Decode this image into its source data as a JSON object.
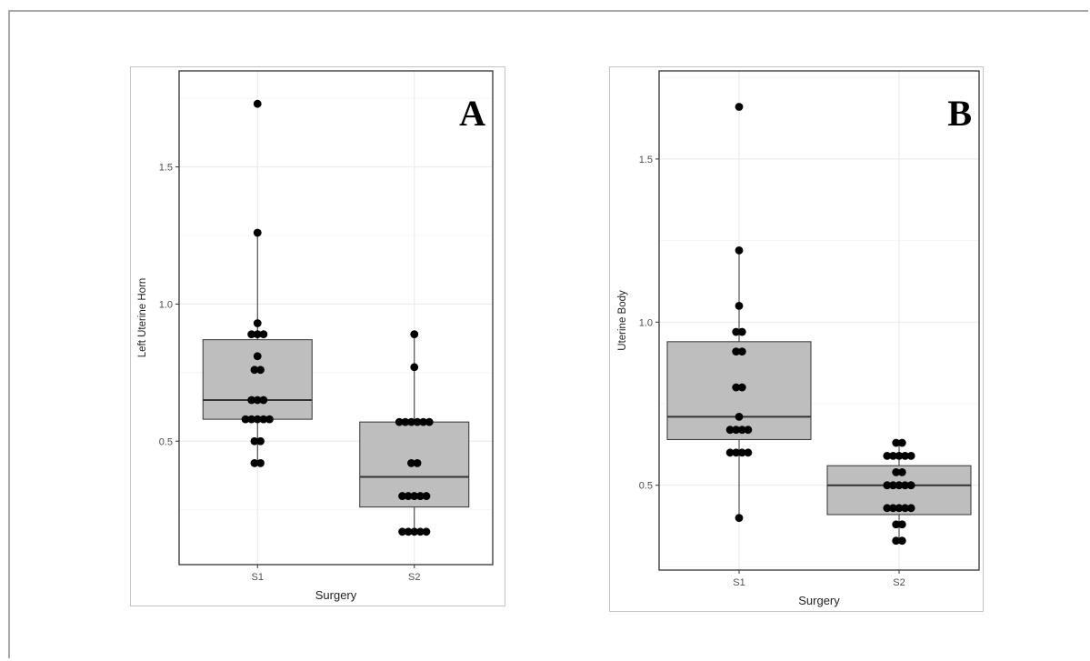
{
  "chart_data": [
    {
      "type": "box",
      "panel_label": "A",
      "title": "",
      "xlabel": "Surgery",
      "ylabel": "Left Uterine Horn",
      "categories": [
        "S1",
        "S2"
      ],
      "ylim": [
        0.05,
        1.85
      ],
      "yticks": [
        0.5,
        1.0,
        1.5
      ],
      "ytick_labels": [
        "0.5",
        "1.0",
        "1.5"
      ],
      "grid": true,
      "box_color": "#bebebe",
      "point_color": "#000000",
      "boxes": [
        {
          "category": "S1",
          "q1": 0.58,
          "median": 0.65,
          "q3": 0.87,
          "whisker_low": 0.42,
          "whisker_high": 1.26
        },
        {
          "category": "S2",
          "q1": 0.26,
          "median": 0.37,
          "q3": 0.57,
          "whisker_low": 0.17,
          "whisker_high": 0.89
        }
      ],
      "points": [
        {
          "category": "S1",
          "values": [
            1.73,
            1.26,
            0.93,
            0.89,
            0.89,
            0.89,
            0.81,
            0.76,
            0.76,
            0.65,
            0.65,
            0.65,
            0.58,
            0.58,
            0.58,
            0.58,
            0.58,
            0.5,
            0.5,
            0.42,
            0.42
          ]
        },
        {
          "category": "S2",
          "values": [
            0.89,
            0.77,
            0.57,
            0.57,
            0.57,
            0.57,
            0.57,
            0.57,
            0.42,
            0.42,
            0.3,
            0.3,
            0.3,
            0.3,
            0.3,
            0.17,
            0.17,
            0.17,
            0.17,
            0.17
          ]
        }
      ]
    },
    {
      "type": "box",
      "panel_label": "B",
      "title": "",
      "xlabel": "Surgery",
      "ylabel": "Uterine Body",
      "categories": [
        "S1",
        "S2"
      ],
      "ylim": [
        0.24,
        1.77
      ],
      "yticks": [
        0.5,
        1.0,
        1.5
      ],
      "ytick_labels": [
        "0.5",
        "1.0",
        "1.5"
      ],
      "grid": true,
      "box_color": "#bebebe",
      "point_color": "#000000",
      "boxes": [
        {
          "category": "S1",
          "q1": 0.64,
          "median": 0.71,
          "q3": 0.94,
          "whisker_low": 0.4,
          "whisker_high": 1.22
        },
        {
          "category": "S2",
          "q1": 0.41,
          "median": 0.5,
          "q3": 0.56,
          "whisker_low": 0.33,
          "whisker_high": 0.63
        }
      ],
      "points": [
        {
          "category": "S1",
          "values": [
            1.66,
            1.22,
            1.05,
            0.97,
            0.97,
            0.91,
            0.91,
            0.8,
            0.8,
            0.71,
            0.67,
            0.67,
            0.67,
            0.67,
            0.6,
            0.6,
            0.6,
            0.6,
            0.4
          ]
        },
        {
          "category": "S2",
          "values": [
            0.63,
            0.63,
            0.59,
            0.59,
            0.59,
            0.59,
            0.59,
            0.54,
            0.54,
            0.5,
            0.5,
            0.5,
            0.5,
            0.5,
            0.43,
            0.43,
            0.43,
            0.43,
            0.43,
            0.38,
            0.38,
            0.33,
            0.33
          ]
        }
      ]
    }
  ]
}
